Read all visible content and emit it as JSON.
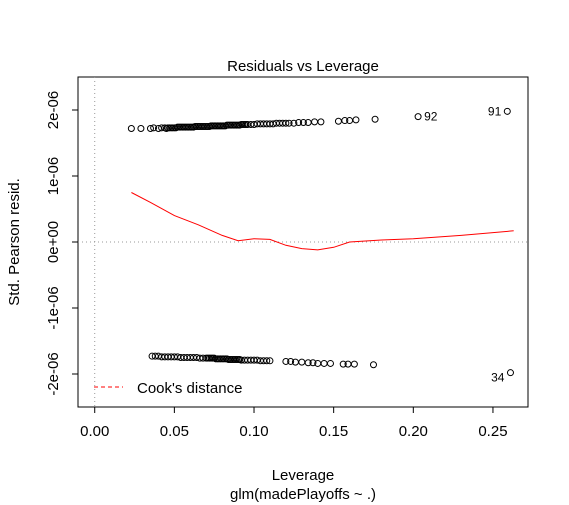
{
  "chart_data": {
    "type": "scatter",
    "title": "Residuals vs Leverage",
    "xlabel": "Leverage",
    "subtitle": "glm(madePlayoffs ~ .)",
    "ylabel": "Std. Pearson resid.",
    "xlim": [
      -0.0105,
      0.272
    ],
    "ylim": [
      -2.5e-06,
      2.5e-06
    ],
    "xticks": [
      0.0,
      0.05,
      0.1,
      0.15,
      0.2,
      0.25
    ],
    "xtick_labels": [
      "0.00",
      "0.05",
      "0.10",
      "0.15",
      "0.20",
      "0.25"
    ],
    "yticks": [
      -2e-06,
      -1e-06,
      0,
      1e-06,
      2e-06
    ],
    "ytick_labels": [
      "-2e-06",
      "-1e-06",
      "0e+00",
      "1e-06",
      "2e-06"
    ],
    "reference_lines": {
      "h": 0,
      "v": 0
    },
    "series": [
      {
        "points": [
          [
            0.023,
            1.72e-06
          ],
          [
            0.029,
            1.72e-06
          ],
          [
            0.035,
            1.72e-06
          ],
          [
            0.037,
            1.73e-06
          ],
          [
            0.04,
            1.72e-06
          ],
          [
            0.042,
            1.73e-06
          ],
          [
            0.044,
            1.73e-06
          ],
          [
            0.045,
            1.72e-06
          ],
          [
            0.046,
            1.73e-06
          ],
          [
            0.047,
            1.73e-06
          ],
          [
            0.048,
            1.73e-06
          ],
          [
            0.049,
            1.73e-06
          ],
          [
            0.05,
            1.73e-06
          ],
          [
            0.051,
            1.73e-06
          ],
          [
            0.052,
            1.74e-06
          ],
          [
            0.053,
            1.74e-06
          ],
          [
            0.054,
            1.74e-06
          ],
          [
            0.055,
            1.74e-06
          ],
          [
            0.056,
            1.74e-06
          ],
          [
            0.057,
            1.74e-06
          ],
          [
            0.058,
            1.74e-06
          ],
          [
            0.059,
            1.74e-06
          ],
          [
            0.06,
            1.74e-06
          ],
          [
            0.061,
            1.74e-06
          ],
          [
            0.062,
            1.74e-06
          ],
          [
            0.063,
            1.75e-06
          ],
          [
            0.064,
            1.75e-06
          ],
          [
            0.065,
            1.75e-06
          ],
          [
            0.066,
            1.75e-06
          ],
          [
            0.067,
            1.75e-06
          ],
          [
            0.068,
            1.75e-06
          ],
          [
            0.069,
            1.75e-06
          ],
          [
            0.07,
            1.75e-06
          ],
          [
            0.071,
            1.75e-06
          ],
          [
            0.072,
            1.75e-06
          ],
          [
            0.073,
            1.76e-06
          ],
          [
            0.074,
            1.76e-06
          ],
          [
            0.075,
            1.76e-06
          ],
          [
            0.076,
            1.76e-06
          ],
          [
            0.077,
            1.76e-06
          ],
          [
            0.078,
            1.76e-06
          ],
          [
            0.079,
            1.76e-06
          ],
          [
            0.08,
            1.76e-06
          ],
          [
            0.081,
            1.76e-06
          ],
          [
            0.082,
            1.76e-06
          ],
          [
            0.083,
            1.77e-06
          ],
          [
            0.084,
            1.77e-06
          ],
          [
            0.085,
            1.77e-06
          ],
          [
            0.086,
            1.77e-06
          ],
          [
            0.087,
            1.77e-06
          ],
          [
            0.088,
            1.77e-06
          ],
          [
            0.089,
            1.77e-06
          ],
          [
            0.09,
            1.77e-06
          ],
          [
            0.091,
            1.77e-06
          ],
          [
            0.092,
            1.78e-06
          ],
          [
            0.093,
            1.78e-06
          ],
          [
            0.094,
            1.78e-06
          ],
          [
            0.095,
            1.78e-06
          ],
          [
            0.096,
            1.78e-06
          ],
          [
            0.098,
            1.78e-06
          ],
          [
            0.1,
            1.78e-06
          ],
          [
            0.102,
            1.79e-06
          ],
          [
            0.104,
            1.79e-06
          ],
          [
            0.106,
            1.79e-06
          ],
          [
            0.108,
            1.79e-06
          ],
          [
            0.11,
            1.79e-06
          ],
          [
            0.112,
            1.79e-06
          ],
          [
            0.114,
            1.8e-06
          ],
          [
            0.116,
            1.8e-06
          ],
          [
            0.118,
            1.8e-06
          ],
          [
            0.12,
            1.8e-06
          ],
          [
            0.122,
            1.8e-06
          ],
          [
            0.125,
            1.8e-06
          ],
          [
            0.128,
            1.81e-06
          ],
          [
            0.131,
            1.81e-06
          ],
          [
            0.134,
            1.81e-06
          ],
          [
            0.138,
            1.82e-06
          ],
          [
            0.142,
            1.82e-06
          ],
          [
            0.153,
            1.83e-06
          ],
          [
            0.157,
            1.84e-06
          ],
          [
            0.16,
            1.84e-06
          ],
          [
            0.164,
            1.85e-06
          ],
          [
            0.176,
            1.86e-06
          ],
          [
            0.203,
            1.9e-06
          ],
          [
            0.259,
            1.98e-06
          ],
          [
            0.036,
            -1.73e-06
          ],
          [
            0.038,
            -1.73e-06
          ],
          [
            0.04,
            -1.73e-06
          ],
          [
            0.042,
            -1.74e-06
          ],
          [
            0.044,
            -1.74e-06
          ],
          [
            0.046,
            -1.74e-06
          ],
          [
            0.048,
            -1.74e-06
          ],
          [
            0.05,
            -1.74e-06
          ],
          [
            0.052,
            -1.74e-06
          ],
          [
            0.054,
            -1.75e-06
          ],
          [
            0.056,
            -1.75e-06
          ],
          [
            0.058,
            -1.75e-06
          ],
          [
            0.06,
            -1.75e-06
          ],
          [
            0.062,
            -1.75e-06
          ],
          [
            0.064,
            -1.75e-06
          ],
          [
            0.066,
            -1.76e-06
          ],
          [
            0.068,
            -1.76e-06
          ],
          [
            0.07,
            -1.76e-06
          ],
          [
            0.071,
            -1.76e-06
          ],
          [
            0.072,
            -1.76e-06
          ],
          [
            0.073,
            -1.76e-06
          ],
          [
            0.074,
            -1.76e-06
          ],
          [
            0.075,
            -1.76e-06
          ],
          [
            0.076,
            -1.77e-06
          ],
          [
            0.077,
            -1.77e-06
          ],
          [
            0.078,
            -1.77e-06
          ],
          [
            0.079,
            -1.77e-06
          ],
          [
            0.08,
            -1.77e-06
          ],
          [
            0.081,
            -1.77e-06
          ],
          [
            0.082,
            -1.77e-06
          ],
          [
            0.083,
            -1.77e-06
          ],
          [
            0.084,
            -1.78e-06
          ],
          [
            0.085,
            -1.78e-06
          ],
          [
            0.086,
            -1.78e-06
          ],
          [
            0.087,
            -1.78e-06
          ],
          [
            0.088,
            -1.78e-06
          ],
          [
            0.089,
            -1.78e-06
          ],
          [
            0.09,
            -1.78e-06
          ],
          [
            0.091,
            -1.78e-06
          ],
          [
            0.092,
            -1.79e-06
          ],
          [
            0.094,
            -1.79e-06
          ],
          [
            0.096,
            -1.79e-06
          ],
          [
            0.098,
            -1.79e-06
          ],
          [
            0.1,
            -1.79e-06
          ],
          [
            0.102,
            -1.79e-06
          ],
          [
            0.104,
            -1.8e-06
          ],
          [
            0.106,
            -1.8e-06
          ],
          [
            0.108,
            -1.8e-06
          ],
          [
            0.11,
            -1.8e-06
          ],
          [
            0.12,
            -1.81e-06
          ],
          [
            0.123,
            -1.81e-06
          ],
          [
            0.126,
            -1.82e-06
          ],
          [
            0.13,
            -1.82e-06
          ],
          [
            0.134,
            -1.83e-06
          ],
          [
            0.137,
            -1.83e-06
          ],
          [
            0.14,
            -1.84e-06
          ],
          [
            0.144,
            -1.84e-06
          ],
          [
            0.148,
            -1.84e-06
          ],
          [
            0.156,
            -1.85e-06
          ],
          [
            0.159,
            -1.85e-06
          ],
          [
            0.163,
            -1.85e-06
          ],
          [
            0.175,
            -1.86e-06
          ],
          [
            0.261,
            -1.98e-06
          ]
        ],
        "color": "#000000",
        "marker": "open-circle"
      }
    ],
    "smooth_line": {
      "color": "#ff0000",
      "x": [
        0.023,
        0.035,
        0.05,
        0.065,
        0.08,
        0.09,
        0.1,
        0.11,
        0.12,
        0.13,
        0.14,
        0.15,
        0.16,
        0.18,
        0.2,
        0.23,
        0.263
      ],
      "y": [
        7.5e-07,
        6e-07,
        4e-07,
        2.6e-07,
        1e-07,
        2e-08,
        5e-08,
        4e-08,
        -5e-08,
        -1e-07,
        -1.2e-07,
        -8e-08,
        0.0,
        3e-08,
        5e-08,
        1e-07,
        1.7e-07
      ]
    },
    "point_labels": [
      {
        "text": "91",
        "x": 0.259,
        "y": 1.98e-06,
        "pos": "left"
      },
      {
        "text": "92",
        "x": 0.203,
        "y": 1.9e-06,
        "pos": "right"
      },
      {
        "text": "34",
        "x": 0.261,
        "y": -1.98e-06,
        "pos": "left"
      }
    ],
    "legend": {
      "position": "bottom-left",
      "items": [
        {
          "label": "Cook's distance",
          "color": "#ff0000",
          "line": "dashed"
        }
      ]
    }
  }
}
